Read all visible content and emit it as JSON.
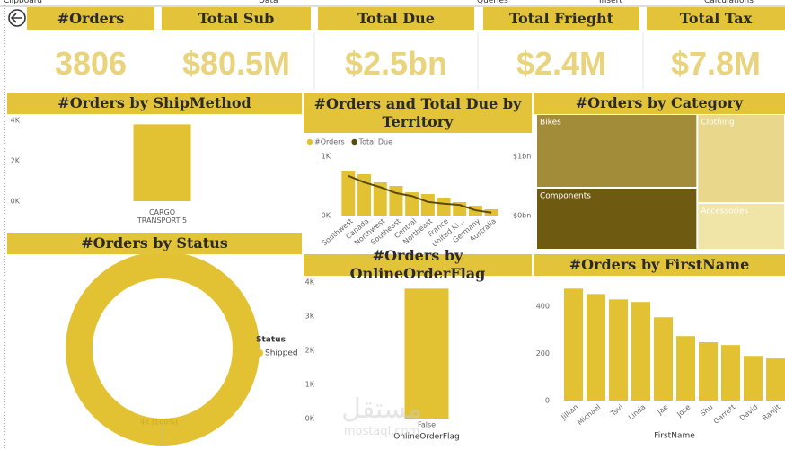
{
  "ribbon": [
    "Clipboard",
    "Data",
    "Queries",
    "Insert",
    "Calculations"
  ],
  "cards": [
    {
      "title": "#Orders",
      "value": 3806
    },
    {
      "title": "Total Sub",
      "value": "$80.5M"
    },
    {
      "title": "Total Due",
      "value": "$2.5bn"
    },
    {
      "title": "Total Frieght",
      "value": "$2.4M"
    },
    {
      "title": "Total Tax",
      "value": "$7.8M"
    }
  ],
  "watermark": [
    "مستقل",
    "mostaql.com"
  ],
  "chart_data": [
    {
      "type": "bar",
      "title": "#Orders by ShipMethod",
      "categories": [
        "CARGO TRANSPORT 5"
      ],
      "values": [
        3806
      ],
      "color": "#e2c232",
      "ylim": [
        0,
        4000
      ],
      "yticks": [
        {
          "value": 0,
          "label": "0K"
        },
        {
          "value": 2000,
          "label": "2K"
        },
        {
          "value": 4000,
          "label": "4K"
        }
      ]
    },
    {
      "type": "combo",
      "title": "#Orders and Total Due by Territory",
      "categories": [
        "Southwest",
        "Canada",
        "Northwest",
        "Southeast",
        "Central",
        "Northeast",
        "France",
        "United Ki...",
        "Germany",
        "Australia"
      ],
      "series": [
        {
          "name": "#Orders",
          "color": "#e2c232",
          "values": [
            758,
            697,
            561,
            500,
            394,
            364,
            303,
            227,
            167,
            106
          ]
        },
        {
          "name": "Total Due",
          "color": "#5c4a08",
          "axis": "y2",
          "values": [
            670000000,
            560000000,
            480000000,
            380000000,
            330000000,
            230000000,
            200000000,
            180000000,
            90000000,
            50000000
          ]
        }
      ],
      "ylim": [
        0,
        1000
      ],
      "yticks": [
        {
          "value": 0,
          "label": "0K"
        },
        {
          "value": 1000,
          "label": "1K"
        }
      ],
      "y2lim": [
        0,
        1000000000
      ],
      "y2ticks": [
        {
          "value": 0,
          "label": "$0bn"
        },
        {
          "value": 1000000000,
          "label": "$1bn"
        }
      ]
    },
    {
      "type": "treemap",
      "title": "#Orders by Category",
      "categories": [
        "Bikes",
        "Components",
        "Clothing",
        "Accessories"
      ],
      "values": [
        1338,
        1126,
        880,
        462
      ],
      "colors": [
        "#a38c39",
        "#6e5a10",
        "#e9d78c",
        "#f0e4a6"
      ]
    },
    {
      "type": "donut",
      "title": "#Orders by Status",
      "legend_title": "Status",
      "categories": [
        "Shipped"
      ],
      "values": [
        3806
      ],
      "value_labels": [
        "4K (100%)"
      ],
      "color": "#e2c232"
    },
    {
      "type": "bar",
      "title": "#Orders by OnlineOrderFlag",
      "categories": [
        "False"
      ],
      "values": [
        3806
      ],
      "color": "#e2c232",
      "xlabel": "OnlineOrderFlag",
      "ylim": [
        0,
        4000
      ],
      "yticks": [
        {
          "value": 0,
          "label": "0K"
        },
        {
          "value": 1000,
          "label": "1K"
        },
        {
          "value": 2000,
          "label": "2K"
        },
        {
          "value": 3000,
          "label": "3K"
        },
        {
          "value": 4000,
          "label": "4K"
        }
      ]
    },
    {
      "type": "bar",
      "title": "#Orders by FirstName",
      "categories": [
        "Jillian",
        "Michael",
        "Tsvi",
        "Linda",
        "Jae",
        "Jose",
        "Shu",
        "Garrett",
        "David",
        "Ranjit"
      ],
      "values": [
        476,
        453,
        430,
        419,
        354,
        274,
        248,
        236,
        190,
        179
      ],
      "color": "#e2c232",
      "xlabel": "FirstName",
      "ylim": [
        0,
        500
      ],
      "yticks": [
        0,
        200,
        400
      ]
    }
  ]
}
